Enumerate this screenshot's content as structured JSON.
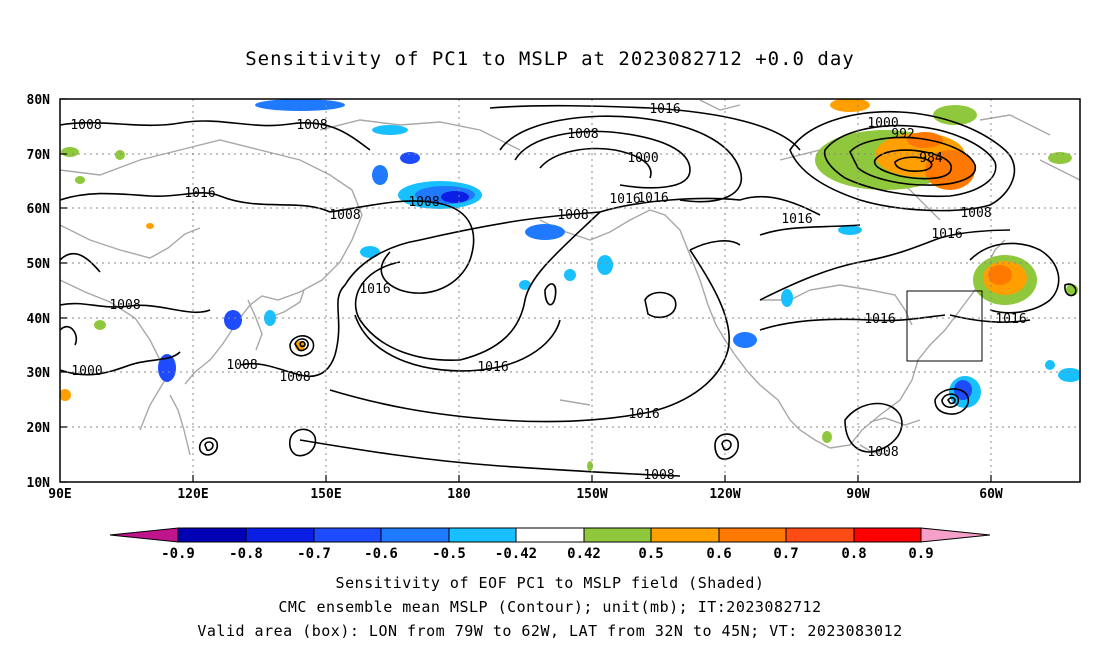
{
  "title": "Sensitivity of PC1 to MSLP at 2023082712 +0.0 day",
  "lat_ticks": [
    "80N",
    "70N",
    "60N",
    "50N",
    "40N",
    "30N",
    "20N",
    "10N"
  ],
  "lon_ticks": [
    "90E",
    "120E",
    "150E",
    "180",
    "150W",
    "120W",
    "90W",
    "60W"
  ],
  "contour_labels": {
    "l1": "1008",
    "l2": "1008",
    "l3": "1016",
    "l4": "1008",
    "l5": "1008",
    "l6": "1016",
    "l7": "1008",
    "l8": "1000",
    "l9": "1008",
    "l10": "1008",
    "l11": "1016",
    "l12": "1016",
    "l13": "1000",
    "l14": "1008",
    "l15": "1016",
    "l16": "1008",
    "l17": "1016",
    "l18": "1016",
    "l19": "1000",
    "l20": "992",
    "l21": "984",
    "l22": "1008",
    "l23": "1016",
    "l24": "1016",
    "l25": "1016",
    "l26": "1008",
    "l27": "1016",
    "l28": "1008"
  },
  "colorbar": {
    "labels": [
      "-0.9",
      "-0.8",
      "-0.7",
      "-0.6",
      "-0.5",
      "-0.42",
      "0.42",
      "0.5",
      "0.6",
      "0.7",
      "0.8",
      "0.9"
    ],
    "colors": [
      "#0000b4",
      "#0a1ee6",
      "#1f4bff",
      "#1f7aff",
      "#18c0ff",
      "#ffffff",
      "#8fc83c",
      "#ffa000",
      "#ff7800",
      "#ff4b14",
      "#ff0000"
    ],
    "low_extend_color": "#c0148c",
    "high_extend_color": "#f5a0c8"
  },
  "captions": {
    "line1": "Sensitivity of EOF PC1 to MSLP field (Shaded)",
    "line2": "CMC ensemble mean MSLP (Contour); unit(mb); IT:2023082712",
    "line3": "Valid area (box): LON from 79W to 62W, LAT from 32N to 45N; VT: 2023083012"
  }
}
